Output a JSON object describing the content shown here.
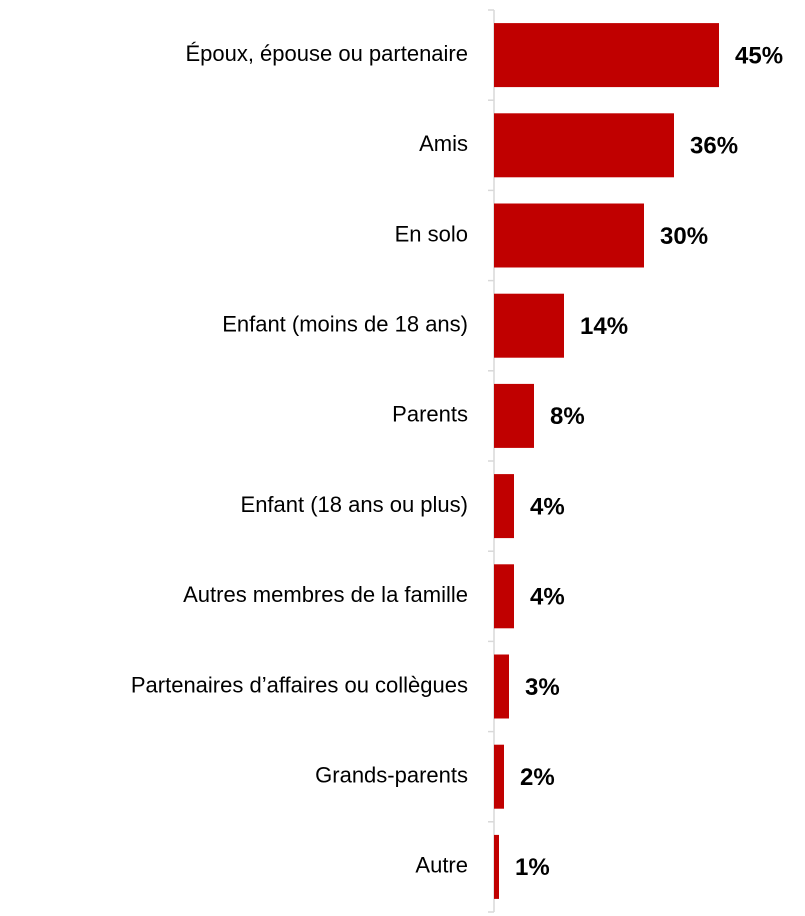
{
  "chart_data": {
    "type": "bar",
    "orientation": "horizontal",
    "categories": [
      "Époux, épouse ou partenaire",
      "Amis",
      "En solo",
      "Enfant (moins de 18 ans)",
      "Parents",
      "Enfant (18 ans ou plus)",
      "Autres membres de la famille",
      "Partenaires d’affaires ou collègues",
      "Grands-parents",
      "Autre"
    ],
    "values": [
      45,
      36,
      30,
      14,
      8,
      4,
      4,
      3,
      2,
      1
    ],
    "value_labels": [
      "45%",
      "36%",
      "30%",
      "14%",
      "8%",
      "4%",
      "4%",
      "3%",
      "2%",
      "1%"
    ],
    "color": "#c00000"
  }
}
